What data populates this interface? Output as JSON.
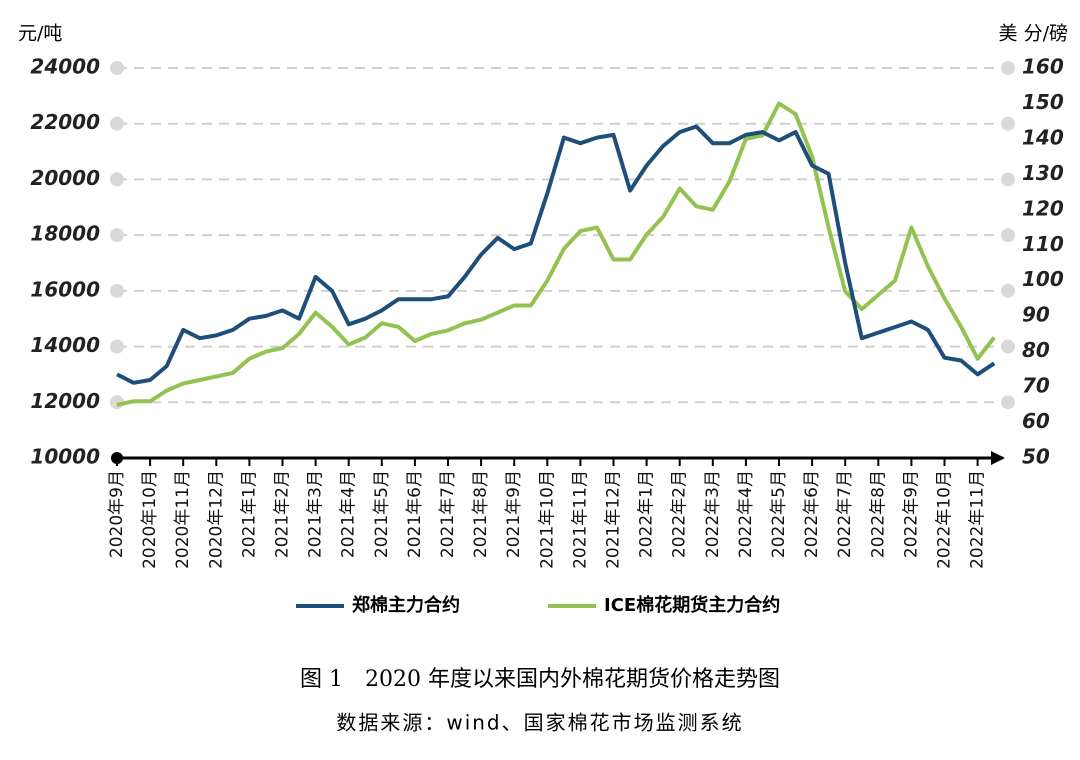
{
  "chart_data": {
    "type": "line",
    "title": "图 1　2020 年度以来国内外棉花期货价格走势图",
    "source": "数据来源：wind、国家棉花市场监测系统",
    "y_label": "元/吨",
    "y2_label": "美 分/磅",
    "categories": [
      "2020年9月",
      null,
      "2020年10月",
      null,
      "2020年11月",
      null,
      "2020年12月",
      null,
      "2021年1月",
      null,
      "2021年2月",
      null,
      "2021年3月",
      null,
      "2021年4月",
      null,
      "2021年5月",
      null,
      "2021年6月",
      null,
      "2021年7月",
      null,
      "2021年8月",
      null,
      "2021年9月",
      null,
      "2021年10月",
      null,
      "2021年11月",
      null,
      "2021年12月",
      null,
      "2022年1月",
      null,
      "2022年2月",
      null,
      "2022年3月",
      null,
      "2022年4月",
      null,
      "2022年5月",
      null,
      "2022年6月",
      null,
      "2022年7月",
      null,
      "2022年8月",
      null,
      "2022年9月",
      null,
      "2022年10月",
      null,
      "2022年11月",
      null
    ],
    "series": [
      {
        "name": "郑棉主力合约",
        "color": "#1f4e79",
        "values": [
          13000,
          12700,
          12800,
          13300,
          14600,
          14300,
          14400,
          14600,
          15000,
          15100,
          15300,
          15000,
          16500,
          16000,
          14800,
          15000,
          15300,
          15700,
          15700,
          15700,
          15800,
          16500,
          17300,
          17900,
          17500,
          17700,
          19500,
          21500,
          21300,
          21500,
          21600,
          19600,
          20500,
          21200,
          21700,
          21900,
          21300,
          21300,
          21600,
          21700,
          21400,
          21700,
          20500,
          20200,
          17000,
          14300,
          14500,
          14700,
          14900,
          14600,
          13600,
          13500,
          13000,
          13400
        ]
      },
      {
        "name": "ICE棉花期货主力合约",
        "color": "#92c350",
        "axis": "y2",
        "values": [
          65,
          66,
          66,
          69,
          71,
          72,
          73,
          74,
          78,
          80,
          81,
          85,
          91,
          87,
          82,
          84,
          88,
          87,
          83,
          85,
          86,
          88,
          89,
          91,
          93,
          93,
          100,
          109,
          114,
          115,
          106,
          106,
          113,
          118,
          126,
          121,
          120,
          128,
          140,
          141,
          150,
          147,
          135,
          115,
          97,
          92,
          96,
          100,
          115,
          104,
          95,
          87,
          78,
          84
        ]
      }
    ],
    "ylim": [
      10000,
      24000
    ],
    "yticks": [
      10000,
      12000,
      14000,
      16000,
      18000,
      20000,
      22000,
      24000
    ],
    "y2lim": [
      50,
      160
    ],
    "y2ticks": [
      50,
      60,
      70,
      80,
      90,
      100,
      110,
      120,
      130,
      140,
      150,
      160
    ],
    "grid": true
  }
}
